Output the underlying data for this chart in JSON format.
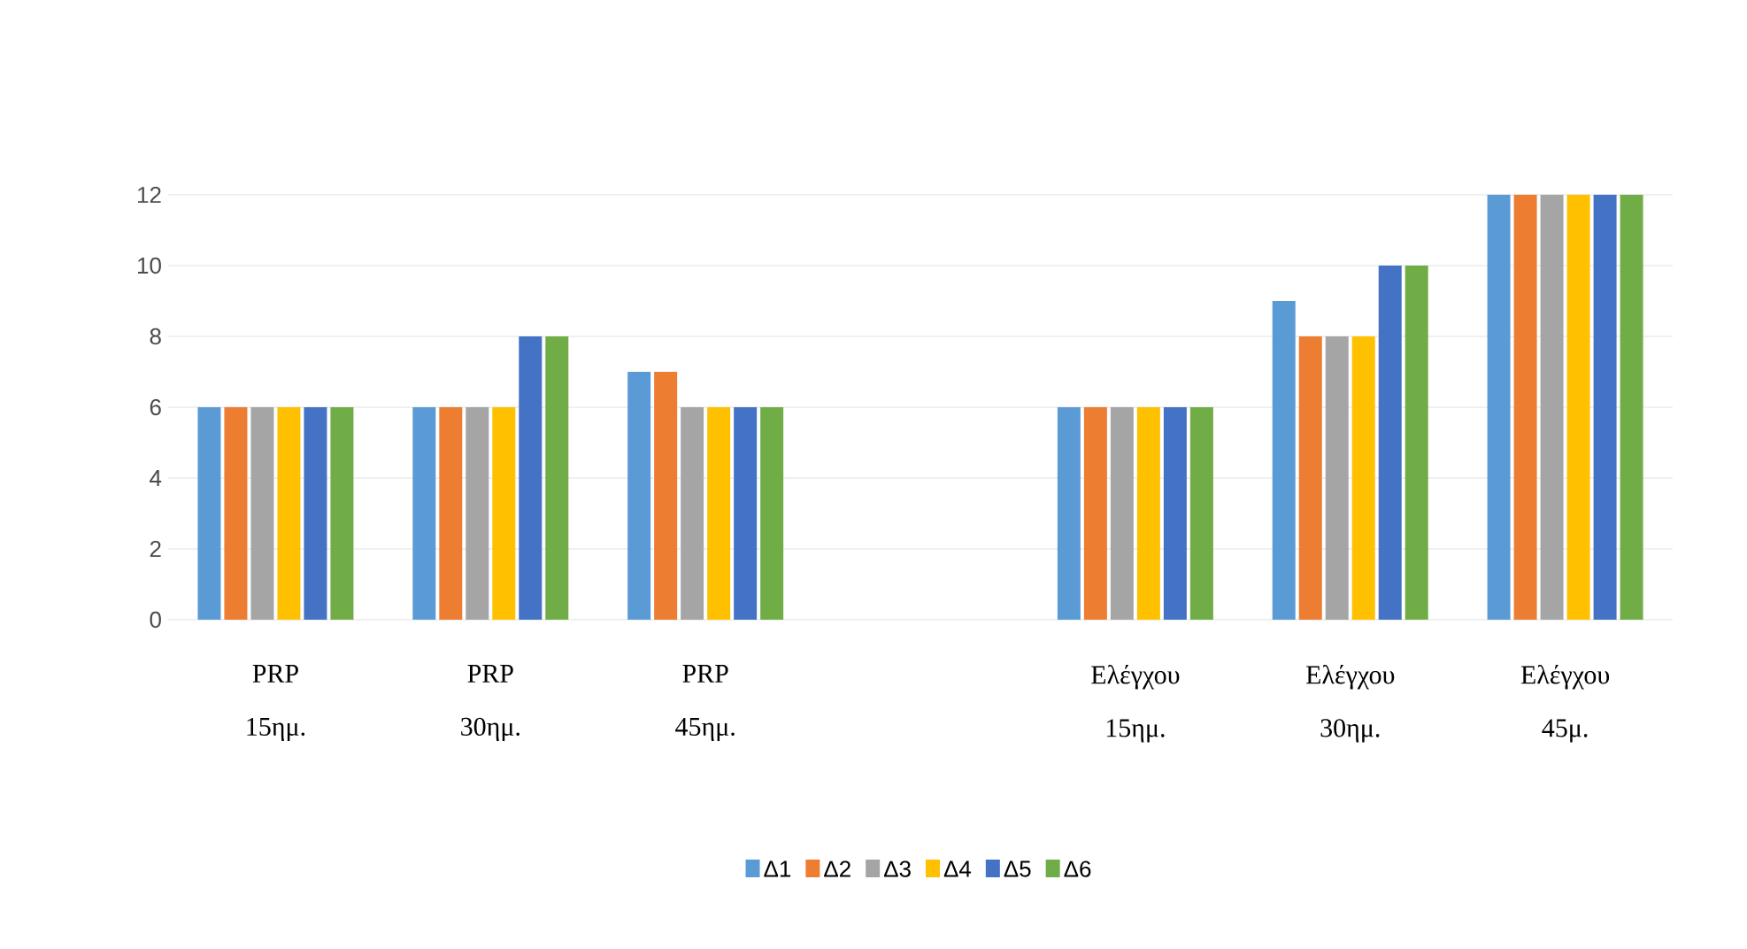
{
  "chart_data": {
    "type": "bar",
    "categories": [
      "PRP 15ημ.",
      "PRP 30ημ.",
      "PRP 45ημ.",
      null,
      "Ελέγχου 15ημ.",
      "Ελέγχου 30ημ.",
      "Ελέγχου 45μ."
    ],
    "series": [
      {
        "name": "Δ1",
        "color": "#5b9bd5",
        "values": [
          6,
          6,
          7,
          null,
          6,
          9,
          12
        ]
      },
      {
        "name": "Δ2",
        "color": "#ed7d31",
        "values": [
          6,
          6,
          7,
          null,
          6,
          8,
          12
        ]
      },
      {
        "name": "Δ3",
        "color": "#a5a5a5",
        "values": [
          6,
          6,
          6,
          null,
          6,
          8,
          12
        ]
      },
      {
        "name": "Δ4",
        "color": "#ffc000",
        "values": [
          6,
          6,
          6,
          null,
          6,
          8,
          12
        ]
      },
      {
        "name": "Δ5",
        "color": "#4472c4",
        "values": [
          6,
          8,
          6,
          null,
          6,
          10,
          12
        ]
      },
      {
        "name": "Δ6",
        "color": "#70ad47",
        "values": [
          6,
          8,
          6,
          null,
          6,
          10,
          12
        ]
      }
    ],
    "ylim": [
      0,
      12
    ],
    "yticks": [
      0,
      2,
      4,
      6,
      8,
      10,
      12
    ],
    "grid": "y",
    "legend": "bottom"
  }
}
